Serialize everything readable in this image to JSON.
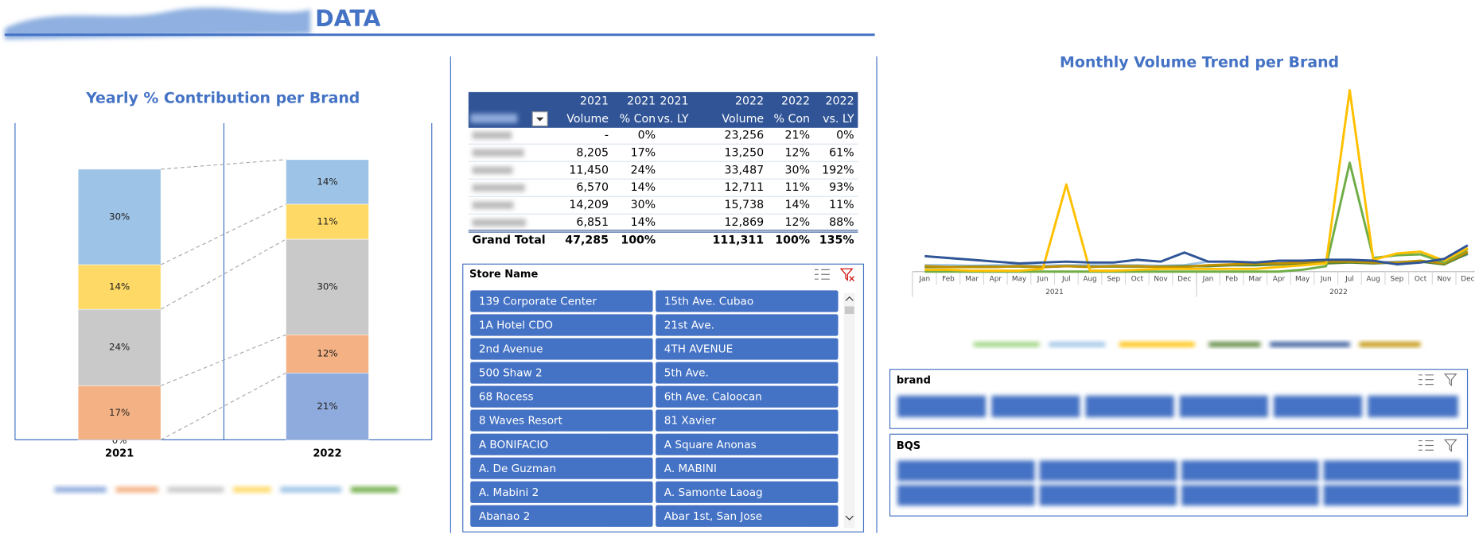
{
  "header": {
    "title": "DATA"
  },
  "chart_data": [
    {
      "type": "stacked_bar",
      "title": "Yearly % Contribution per Brand",
      "categories": [
        "2021",
        "2022"
      ],
      "series": [
        {
          "color": "#8faadc",
          "values": [
            0,
            21
          ],
          "value_labels": [
            "0%",
            "21%"
          ]
        },
        {
          "color": "#f4b183",
          "values": [
            17,
            12
          ],
          "value_labels": [
            "17%",
            "12%"
          ]
        },
        {
          "color": "#c9c9c9",
          "values": [
            24,
            30
          ],
          "value_labels": [
            "24%",
            "30%"
          ]
        },
        {
          "color": "#ffd966",
          "values": [
            14,
            11
          ],
          "value_labels": [
            "14%",
            "11%"
          ]
        },
        {
          "color": "#9dc3e6",
          "values": [
            30,
            14
          ],
          "value_labels": [
            "30%",
            "14%"
          ]
        }
      ]
    },
    {
      "type": "line",
      "title": "Monthly Volume Trend per Brand",
      "categories": [
        "Jan",
        "Feb",
        "Mar",
        "Apr",
        "May",
        "Jun",
        "Jul",
        "Aug",
        "Sep",
        "Oct",
        "Nov",
        "Dec",
        "Jan",
        "Feb",
        "Mar",
        "Apr",
        "May",
        "Jun",
        "Jul",
        "Aug",
        "Sep",
        "Oct",
        "Nov",
        "Dec"
      ],
      "groups": [
        "2021",
        "2022"
      ],
      "series": [
        {
          "color": "#9dc3e6",
          "values": [
            700,
            700,
            650,
            700,
            700,
            650,
            700,
            700,
            700,
            700,
            650,
            700,
            1100,
            1100,
            1000,
            1100,
            1100,
            1100,
            1100,
            1000,
            1100,
            1100,
            1000,
            1900
          ]
        },
        {
          "color": "#548235",
          "values": [
            500,
            500,
            550,
            550,
            550,
            500,
            600,
            550,
            550,
            550,
            550,
            600,
            600,
            700,
            700,
            800,
            900,
            900,
            1000,
            900,
            1000,
            1100,
            800,
            2000
          ]
        },
        {
          "color": "#bf9000",
          "values": [
            600,
            500,
            500,
            500,
            600,
            500,
            600,
            500,
            600,
            600,
            500,
            500,
            700,
            800,
            900,
            900,
            1000,
            1100,
            1100,
            1000,
            1000,
            1200,
            900,
            2200
          ]
        },
        {
          "color": "#70ad47",
          "values": [
            0,
            0,
            0,
            0,
            0,
            0,
            0,
            0,
            0,
            0,
            0,
            0,
            0,
            0,
            0,
            0,
            200,
            600,
            12000,
            1500,
            1800,
            1900,
            1000,
            2500
          ]
        },
        {
          "color": "#ffc000",
          "values": [
            200,
            200,
            100,
            100,
            100,
            300,
            9600,
            100,
            100,
            200,
            300,
            300,
            300,
            300,
            300,
            500,
            700,
            900,
            20000,
            1300,
            2000,
            2200,
            1200,
            2600
          ]
        },
        {
          "color": "#2f5597",
          "values": [
            1700,
            1500,
            1300,
            1100,
            900,
            1000,
            1100,
            1000,
            1000,
            1300,
            1100,
            2100,
            1100,
            1100,
            1000,
            1200,
            1200,
            1300,
            1300,
            1200,
            800,
            1000,
            1400,
            2900
          ]
        }
      ]
    }
  ],
  "table": {
    "header": [
      [
        "2021",
        "2021",
        "2021",
        "2022",
        "2022",
        "2022"
      ],
      [
        "Volume",
        "% Con",
        "vs. LY",
        "Volume",
        "% Con",
        "vs. LY"
      ]
    ],
    "rows": [
      [
        "-",
        "0%",
        null,
        "23,256",
        "21%",
        "0%"
      ],
      [
        "8,205",
        "17%",
        null,
        "13,250",
        "12%",
        "61%"
      ],
      [
        "11,450",
        "24%",
        null,
        "33,487",
        "30%",
        "192%"
      ],
      [
        "6,570",
        "14%",
        null,
        "12,711",
        "11%",
        "93%"
      ],
      [
        "14,209",
        "30%",
        null,
        "15,738",
        "14%",
        "11%"
      ],
      [
        "6,851",
        "14%",
        null,
        "12,869",
        "12%",
        "88%"
      ]
    ],
    "total": [
      "Grand Total",
      "47,285",
      "100%",
      null,
      "111,311",
      "100%",
      "135%"
    ]
  },
  "slicers": [
    {
      "title": "Store Name",
      "items": [
        "139 Corporate Center",
        "15th Ave. Cubao",
        "1A Hotel CDO",
        "21st Ave.",
        "2nd Avenue",
        "4TH AVENUE",
        "500 Shaw 2",
        "5th Ave.",
        "68 Rocess",
        "6th Ave. Caloocan",
        "8 Waves Resort",
        "81 Xavier",
        "A BONIFACIO",
        "A Square Anonas",
        "A. De Guzman",
        "A. MABINI",
        "A. Mabini 2",
        "A. Samonte Laoag",
        "Abanao 2",
        "Abar 1st, San Jose"
      ]
    },
    {
      "title": "brand"
    },
    {
      "title": "BQS"
    }
  ]
}
